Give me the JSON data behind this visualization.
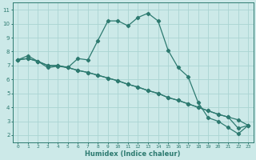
{
  "xlabel": "Humidex (Indice chaleur)",
  "xlim": [
    -0.5,
    23.5
  ],
  "ylim": [
    1.5,
    11.5
  ],
  "xticks": [
    0,
    1,
    2,
    3,
    4,
    5,
    6,
    7,
    8,
    9,
    10,
    11,
    12,
    13,
    14,
    15,
    16,
    17,
    18,
    19,
    20,
    21,
    22,
    23
  ],
  "yticks": [
    2,
    3,
    4,
    5,
    6,
    7,
    8,
    9,
    10,
    11
  ],
  "bg_color": "#cce9e8",
  "grid_color": "#aad4d2",
  "line_color": "#2d7a70",
  "line1_x": [
    0,
    1,
    2,
    3,
    4,
    5,
    6,
    7,
    8,
    9,
    10,
    11,
    12,
    13,
    14,
    15,
    16,
    17,
    18,
    19,
    20,
    21,
    22,
    23
  ],
  "line1_y": [
    7.4,
    7.7,
    7.3,
    6.85,
    6.95,
    6.85,
    7.5,
    7.4,
    8.8,
    10.2,
    10.2,
    9.85,
    10.45,
    10.75,
    10.2,
    8.1,
    6.85,
    6.2,
    4.35,
    3.25,
    3.0,
    2.55,
    2.1,
    2.7
  ],
  "line2_x": [
    0,
    1,
    2,
    3,
    4,
    5,
    6,
    7,
    8,
    9,
    10,
    11,
    12,
    13,
    14,
    15,
    16,
    17,
    18,
    19,
    20,
    21,
    22,
    23
  ],
  "line2_y": [
    7.4,
    7.5,
    7.3,
    7.0,
    7.0,
    6.85,
    6.65,
    6.5,
    6.3,
    6.1,
    5.9,
    5.65,
    5.45,
    5.2,
    5.0,
    4.7,
    4.5,
    4.25,
    4.0,
    3.75,
    3.5,
    3.3,
    3.1,
    2.7
  ],
  "line3_x": [
    0,
    1,
    2,
    3,
    4,
    5,
    6,
    7,
    8,
    9,
    10,
    11,
    12,
    13,
    14,
    15,
    16,
    17,
    18,
    19,
    20,
    21,
    22,
    23
  ],
  "line3_y": [
    7.4,
    7.5,
    7.3,
    7.0,
    7.0,
    6.85,
    6.65,
    6.5,
    6.3,
    6.1,
    5.9,
    5.65,
    5.45,
    5.2,
    5.0,
    4.7,
    4.5,
    4.25,
    4.0,
    3.75,
    3.5,
    3.3,
    2.5,
    2.7
  ]
}
